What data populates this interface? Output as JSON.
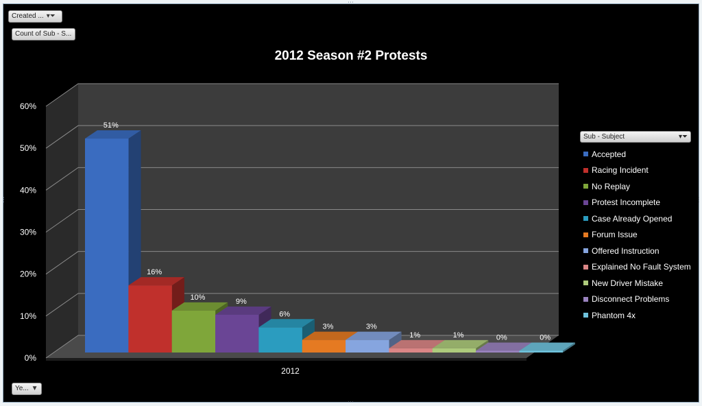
{
  "filters": {
    "report_filter_label": "Created ...",
    "values_label": "Count of Sub - S...",
    "axis_field_label": "Ye...",
    "filter_icon": "filter-funnel-icon",
    "dropdown_icon": "dropdown-arrow-icon"
  },
  "legend": {
    "field_label": "Sub - Subject"
  },
  "chart_data": {
    "type": "bar",
    "title": "2012 Season #2 Protests",
    "xlabel": "",
    "ylabel": "",
    "categories": [
      "2012"
    ],
    "ylim": [
      0,
      60
    ],
    "yticks": [
      "0%",
      "10%",
      "20%",
      "30%",
      "40%",
      "50%",
      "60%"
    ],
    "grid": true,
    "legend_position": "right",
    "series": [
      {
        "name": "Accepted",
        "values": [
          51
        ],
        "label": "51%",
        "color": "#3a6cc0"
      },
      {
        "name": "Racing Incident",
        "values": [
          16
        ],
        "label": "16%",
        "color": "#c0302c"
      },
      {
        "name": "No Replay",
        "values": [
          10
        ],
        "label": "10%",
        "color": "#7fa63a"
      },
      {
        "name": "Protest Incomplete",
        "values": [
          9
        ],
        "label": "9%",
        "color": "#6a4595"
      },
      {
        "name": "Case Already Opened",
        "values": [
          6
        ],
        "label": "6%",
        "color": "#2b9cbf"
      },
      {
        "name": "Forum Issue",
        "values": [
          3
        ],
        "label": "3%",
        "color": "#e57a22"
      },
      {
        "name": "Offered Instruction",
        "values": [
          3
        ],
        "label": "3%",
        "color": "#86a5df"
      },
      {
        "name": "Explained No Fault System",
        "values": [
          1
        ],
        "label": "1%",
        "color": "#db8686"
      },
      {
        "name": "New Driver Mistake",
        "values": [
          1
        ],
        "label": "1%",
        "color": "#aecb7c"
      },
      {
        "name": "Disconnect Problems",
        "values": [
          0
        ],
        "label": "0%",
        "color": "#9a83bf"
      },
      {
        "name": "Phantom 4x",
        "values": [
          0
        ],
        "label": "0%",
        "color": "#6fc2dc"
      }
    ]
  }
}
